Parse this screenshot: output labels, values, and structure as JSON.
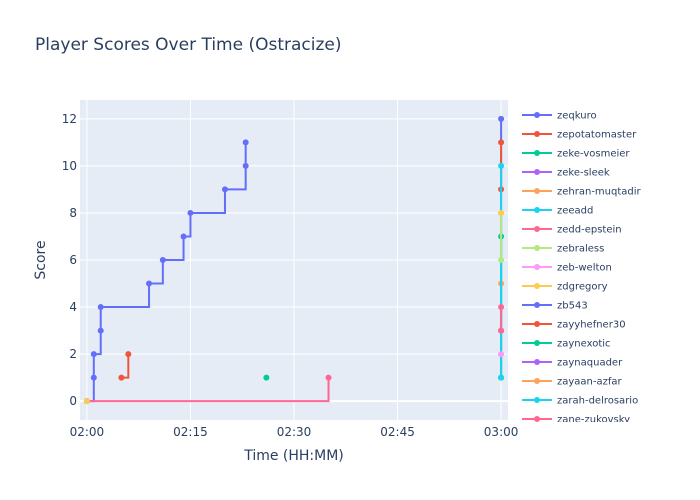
{
  "chart_data": {
    "type": "line",
    "title": "Player Scores Over Time (Ostracize)",
    "xlabel": "Time (HH:MM)",
    "ylabel": "Score",
    "xlim": [
      "01:59",
      "03:01"
    ],
    "ylim": [
      -0.8,
      12.8
    ],
    "x_ticks": [
      "02:00",
      "02:15",
      "02:30",
      "02:45",
      "03:00"
    ],
    "y_ticks": [
      0,
      2,
      4,
      6,
      8,
      10,
      12
    ],
    "grid": true,
    "line_shape": "step",
    "legend_placement": "right",
    "series": [
      {
        "name": "zeqkuro",
        "color": "#636efa",
        "points": [
          [
            "02:00",
            0
          ],
          [
            "02:01",
            1
          ],
          [
            "02:01",
            2
          ],
          [
            "02:02",
            3
          ],
          [
            "02:02",
            4
          ],
          [
            "02:09",
            5
          ],
          [
            "02:11",
            6
          ],
          [
            "02:14",
            7
          ],
          [
            "02:15",
            8
          ],
          [
            "02:20",
            9
          ],
          [
            "02:23",
            10
          ],
          [
            "02:23",
            11
          ]
        ]
      },
      {
        "name": "zepotatomaster",
        "color": "#ef553b",
        "points": [
          [
            "02:05",
            1
          ],
          [
            "02:06",
            2
          ]
        ]
      },
      {
        "name": "zeke-vosmeier",
        "color": "#00cc96",
        "points": [
          [
            "02:26",
            1
          ]
        ]
      },
      {
        "name": "zeke-sleek",
        "color": "#ab63fa",
        "points": []
      },
      {
        "name": "zehran-muqtadir",
        "color": "#ffa15a",
        "points": []
      },
      {
        "name": "zeeadd",
        "color": "#19d3f3",
        "points": []
      },
      {
        "name": "zedd-epstein",
        "color": "#ff6692",
        "points": [
          [
            "02:00",
            0
          ],
          [
            "02:35",
            1
          ]
        ]
      },
      {
        "name": "zebraless",
        "color": "#b6e880",
        "points": []
      },
      {
        "name": "zeb-welton",
        "color": "#ff97ff",
        "points": []
      },
      {
        "name": "zdgregory",
        "color": "#fecb52",
        "points": [
          [
            "02:00",
            0
          ]
        ]
      },
      {
        "name": "zb543",
        "color": "#636efa",
        "points": [
          [
            "03:00",
            1
          ],
          [
            "03:00",
            12
          ]
        ]
      },
      {
        "name": "zayyhefner30",
        "color": "#ef553b",
        "points": [
          [
            "03:00",
            9
          ],
          [
            "03:00",
            11
          ]
        ]
      },
      {
        "name": "zaynexotic",
        "color": "#00cc96",
        "points": [
          [
            "03:00",
            1
          ],
          [
            "03:00",
            7
          ]
        ]
      },
      {
        "name": "zaynaquader",
        "color": "#ab63fa",
        "points": [
          [
            "03:00",
            3
          ]
        ]
      },
      {
        "name": "zayaan-azfar",
        "color": "#ffa15a",
        "points": [
          [
            "03:00",
            5
          ]
        ]
      },
      {
        "name": "zarah-delrosario",
        "color": "#19d3f3",
        "points": [
          [
            "03:00",
            1
          ],
          [
            "03:00",
            10
          ]
        ]
      },
      {
        "name": "zane-zukovsky",
        "color": "#ff6692",
        "points": [
          [
            "03:00",
            3
          ],
          [
            "03:00",
            4
          ]
        ]
      },
      {
        "name": "",
        "color": "#b6e880",
        "points": [
          [
            "03:00",
            6
          ],
          [
            "03:00",
            8
          ]
        ]
      },
      {
        "name": "",
        "color": "#ff97ff",
        "points": [
          [
            "03:00",
            2
          ]
        ]
      },
      {
        "name": "",
        "color": "#fecb52",
        "points": [
          [
            "03:00",
            8
          ]
        ]
      }
    ]
  }
}
